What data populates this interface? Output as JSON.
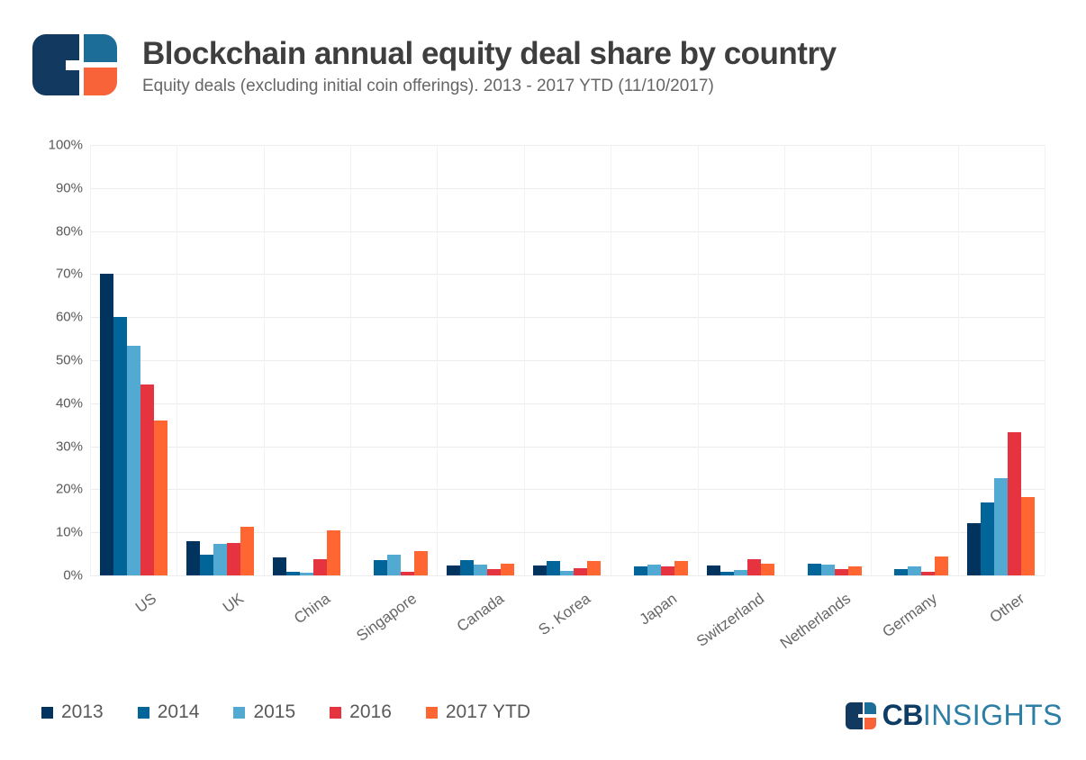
{
  "header": {
    "title": "Blockchain annual equity deal share by country",
    "subtitle": "Equity deals (excluding initial coin offerings). 2013 - 2017 YTD (11/10/2017)"
  },
  "chart_data": {
    "type": "bar",
    "title": "Blockchain annual equity deal share by country",
    "subtitle": "Equity deals (excluding initial coin offerings). 2013 - 2017 YTD (11/10/2017)",
    "categories": [
      "US",
      "UK",
      "China",
      "Singapore",
      "Canada",
      "S. Korea",
      "Japan",
      "Switzerland",
      "Netherlands",
      "Germany",
      "Other"
    ],
    "series": [
      {
        "name": "2013",
        "color": "#00335E",
        "values": [
          70,
          8,
          4.1,
          0,
          2.2,
          2.3,
          0,
          2.2,
          0,
          0,
          12.1
        ]
      },
      {
        "name": "2014",
        "color": "#016599",
        "values": [
          60,
          4.8,
          0.8,
          3.5,
          3.5,
          3.3,
          2.1,
          0.8,
          2.7,
          1.4,
          16.9
        ]
      },
      {
        "name": "2015",
        "color": "#52AAD3",
        "values": [
          53.3,
          7.3,
          0.6,
          4.9,
          2.5,
          1.0,
          2.6,
          1.3,
          2.5,
          2.0,
          22.7
        ]
      },
      {
        "name": "2016",
        "color": "#E5333F",
        "values": [
          44.4,
          7.5,
          3.7,
          0.9,
          1.5,
          1.7,
          2.1,
          3.8,
          1.4,
          0.8,
          33.3
        ]
      },
      {
        "name": "2017 YTD",
        "color": "#FF6632",
        "values": [
          36,
          11.2,
          10.4,
          5.6,
          2.7,
          3.3,
          3.3,
          2.7,
          2.1,
          4.3,
          18.1
        ]
      }
    ],
    "ylim": [
      0,
      100
    ],
    "y_ticks": [
      "100%",
      "90%",
      "80%",
      "70%",
      "60%",
      "50%",
      "40%",
      "30%",
      "20%",
      "10%",
      "0%"
    ],
    "xlabel": "",
    "ylabel": "",
    "grid": true,
    "legend_position": "bottom-left"
  },
  "brand": {
    "cb": "CB",
    "insights": "INSIGHTS"
  },
  "logo_colors": {
    "navy": "#12395F",
    "blue": "#1D6D99",
    "orange": "#F9633A"
  }
}
